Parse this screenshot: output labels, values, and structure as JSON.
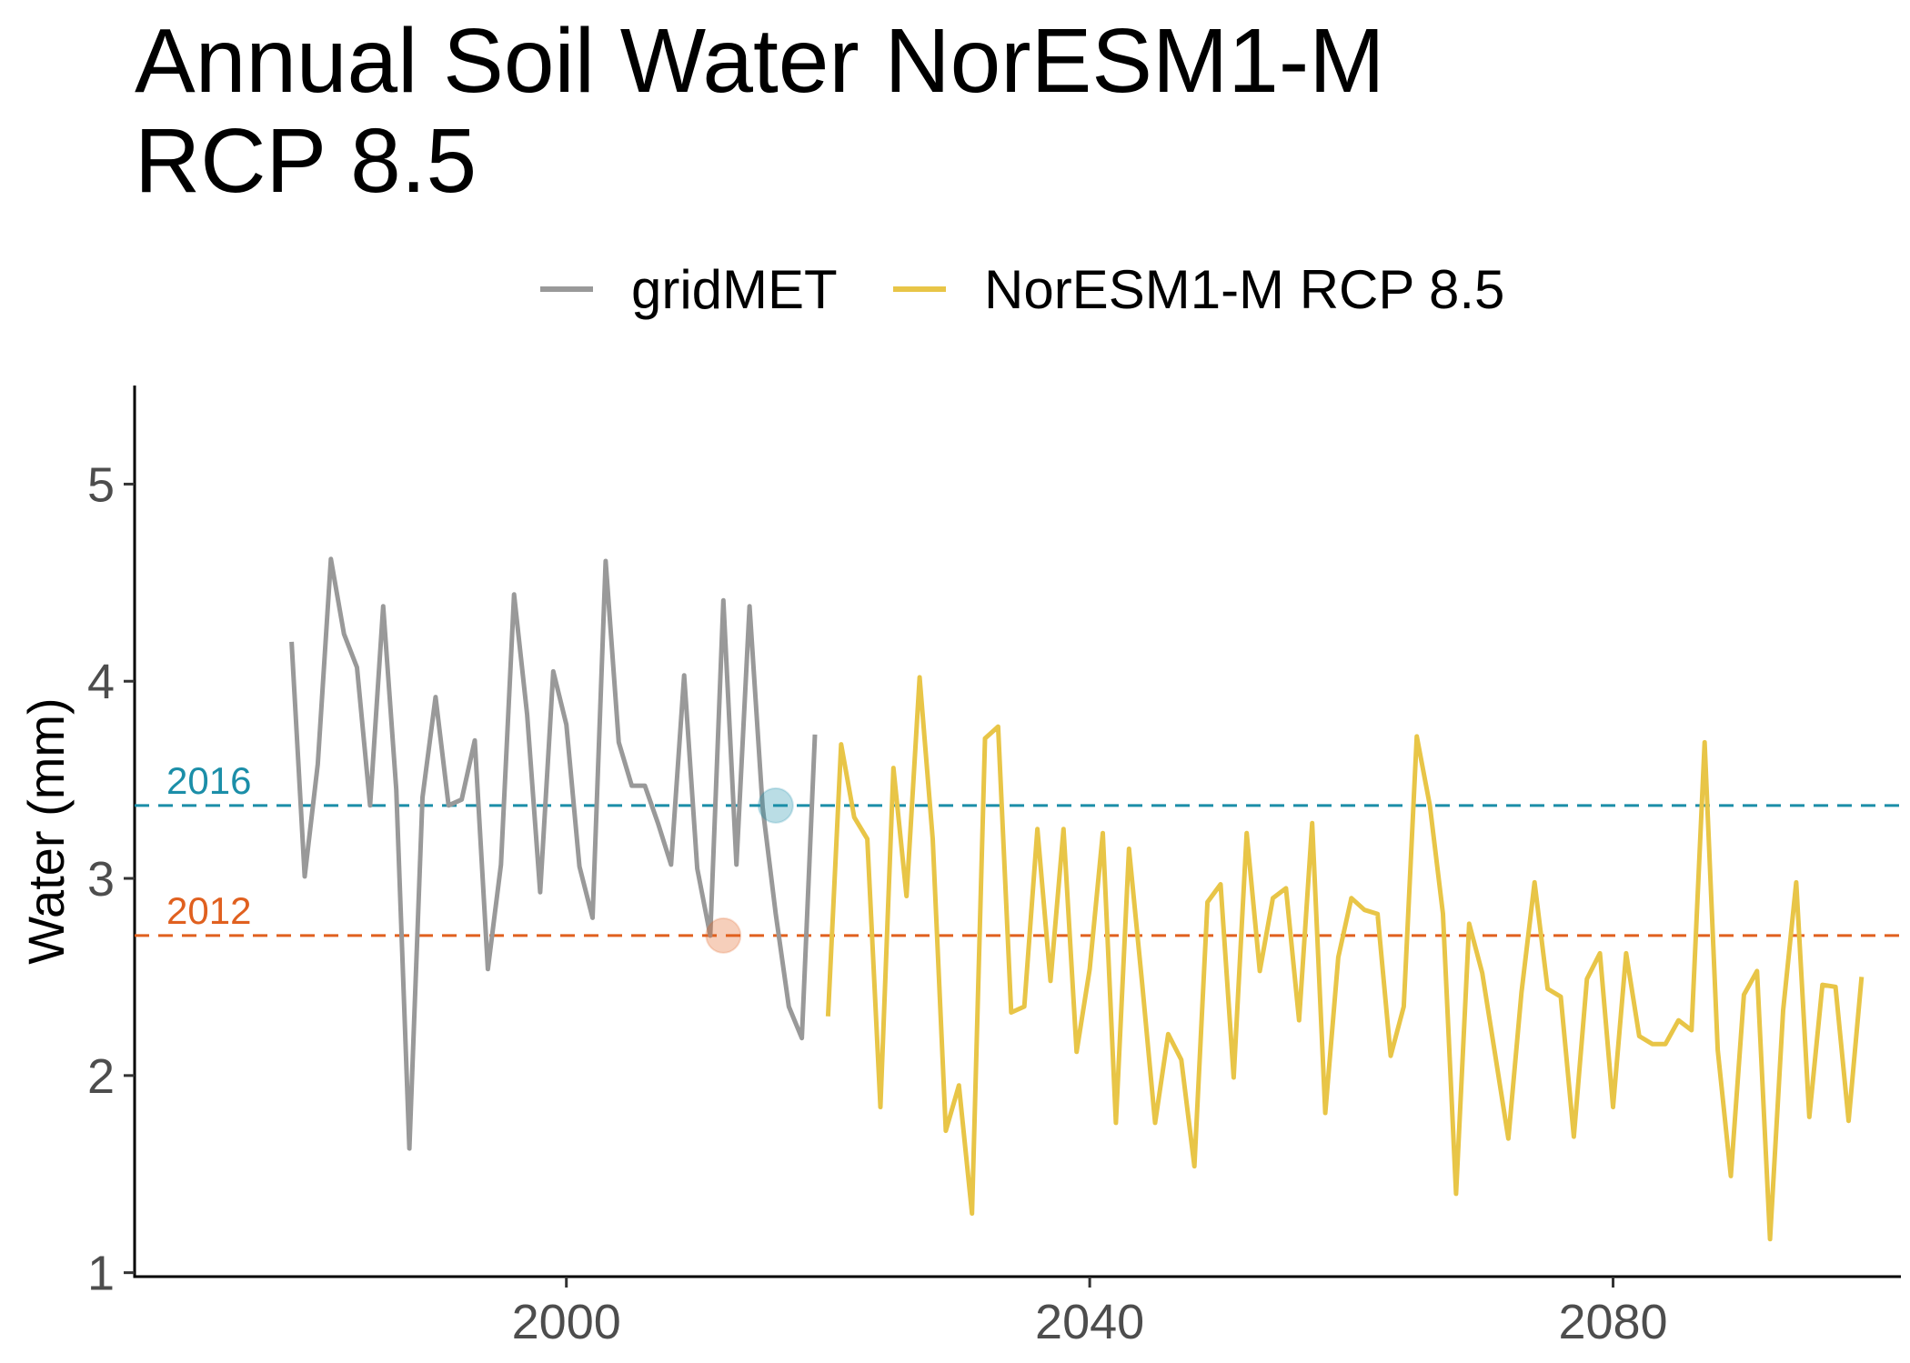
{
  "chart_data": {
    "type": "line",
    "title": [
      "Annual Soil Water NorESM1-M",
      "RCP 8.5"
    ],
    "xlabel": "",
    "ylabel": "Water (mm)",
    "xlim": [
      1967,
      2102
    ],
    "ylim": [
      0.98,
      5.5
    ],
    "x_ticks": [
      2000,
      2040,
      2080
    ],
    "x_tick_labels": [
      "2000",
      "2040",
      "2080"
    ],
    "y_ticks": [
      1,
      2,
      3,
      4,
      5
    ],
    "y_tick_labels": [
      "1",
      "2",
      "3",
      "4",
      "5"
    ],
    "grid": false,
    "legend_position": "top",
    "series": [
      {
        "name": "gridMET",
        "color": "#999999",
        "x": [
          1979,
          1980,
          1981,
          1982,
          1983,
          1984,
          1985,
          1986,
          1987,
          1988,
          1989,
          1990,
          1991,
          1992,
          1993,
          1994,
          1995,
          1996,
          1997,
          1998,
          1999,
          2000,
          2001,
          2002,
          2003,
          2004,
          2005,
          2006,
          2007,
          2008,
          2009,
          2010,
          2011,
          2012,
          2013,
          2014,
          2015,
          2016,
          2017,
          2018,
          2019
        ],
        "values": [
          4.2,
          3.01,
          3.58,
          4.62,
          4.24,
          4.07,
          3.37,
          4.38,
          3.45,
          1.63,
          3.41,
          3.92,
          3.37,
          3.4,
          3.7,
          2.54,
          3.07,
          4.44,
          3.83,
          2.93,
          4.05,
          3.78,
          3.06,
          2.8,
          4.61,
          3.69,
          3.47,
          3.47,
          3.28,
          3.07,
          4.03,
          3.05,
          2.71,
          4.41,
          3.07,
          4.38,
          3.36,
          2.82,
          2.35,
          2.19,
          3.73
        ]
      },
      {
        "name": "NorESM1-M RCP 8.5",
        "color": "#E8C547",
        "x": [
          2020,
          2021,
          2022,
          2023,
          2024,
          2025,
          2026,
          2027,
          2028,
          2029,
          2030,
          2031,
          2032,
          2033,
          2034,
          2035,
          2036,
          2037,
          2038,
          2039,
          2040,
          2041,
          2042,
          2043,
          2044,
          2045,
          2046,
          2047,
          2048,
          2049,
          2050,
          2051,
          2052,
          2053,
          2054,
          2055,
          2056,
          2057,
          2058,
          2059,
          2060,
          2061,
          2062,
          2063,
          2064,
          2065,
          2066,
          2067,
          2068,
          2069,
          2070,
          2071,
          2072,
          2073,
          2074,
          2075,
          2076,
          2077,
          2078,
          2079,
          2080,
          2081,
          2082,
          2083,
          2084,
          2085,
          2086,
          2087,
          2088,
          2089,
          2090,
          2091,
          2092,
          2093,
          2094,
          2095,
          2096,
          2097,
          2098,
          2099
        ],
        "values": [
          2.3,
          3.68,
          3.31,
          3.2,
          1.84,
          3.56,
          2.91,
          4.02,
          3.2,
          1.72,
          1.95,
          1.3,
          3.71,
          3.77,
          2.32,
          2.35,
          3.25,
          2.48,
          3.25,
          2.12,
          2.54,
          3.23,
          1.76,
          3.15,
          2.47,
          1.76,
          2.21,
          2.08,
          1.54,
          2.88,
          2.97,
          1.99,
          3.23,
          2.53,
          2.9,
          2.95,
          2.28,
          3.28,
          1.81,
          2.6,
          2.9,
          2.84,
          2.82,
          2.1,
          2.35,
          3.72,
          3.37,
          2.82,
          1.4,
          2.77,
          2.52,
          2.1,
          1.68,
          2.42,
          2.98,
          2.44,
          2.4,
          1.69,
          2.49,
          2.62,
          1.84,
          2.62,
          2.2,
          2.16,
          2.16,
          2.28,
          2.23,
          3.69,
          2.13,
          1.49,
          2.41,
          2.53,
          1.17,
          2.33,
          2.98,
          1.79,
          2.46,
          2.45,
          1.77,
          2.5
        ]
      }
    ],
    "reference_lines": [
      {
        "label": "2016",
        "year": 2016,
        "value": 3.37,
        "color": "#1B8EA8"
      },
      {
        "label": "2012",
        "value": 2.71,
        "year": 2012,
        "color": "#E0601F"
      }
    ]
  }
}
